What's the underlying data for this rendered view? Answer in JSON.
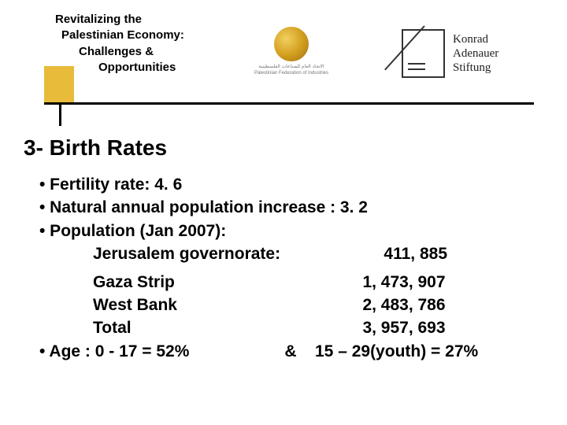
{
  "header": {
    "title_line1": "Revitalizing the",
    "title_line2": "Palestinian Economy:",
    "title_line3": "Challenges &",
    "title_line4": "Opportunities",
    "pfi_text_ar": "الاتحاد العام للصناعات الفلسطينية",
    "pfi_text_en": "Palestinian Federation of Industries",
    "kas_line1": "Konrad",
    "kas_line2": "Adenauer",
    "kas_line3": "Stiftung",
    "accent_color": "#e8bb3a"
  },
  "section": {
    "title": "3- Birth Rates",
    "bullet1": "• Fertility rate: 4. 6",
    "bullet2": "• Natural annual population increase : 3. 2",
    "bullet3": "• Population (Jan 2007):",
    "jerusalem_label": "Jerusalem governorate:",
    "jerusalem_value": "411, 885",
    "rows": [
      {
        "label": "Gaza Strip",
        "value": "1, 473, 907"
      },
      {
        "label": "West Bank",
        "value": "2, 483, 786"
      },
      {
        "label": "Total",
        "value": "3, 957, 693"
      }
    ],
    "age_bullet": "•  Age :  0 - 17 = 52%",
    "age_amp": "&",
    "age_part2": "15 – 29(youth) = 27%"
  }
}
